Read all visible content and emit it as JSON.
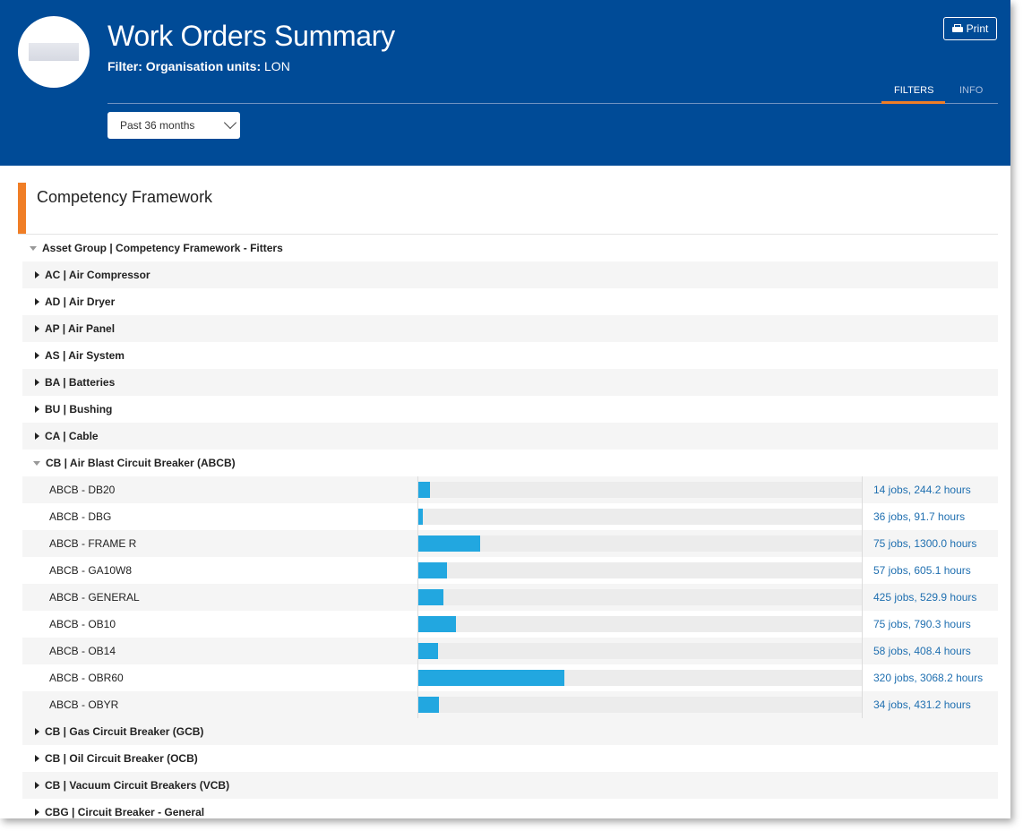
{
  "header": {
    "title": "Work Orders Summary",
    "filter_label": "Filter: Organisation units:",
    "filter_value": "LON",
    "print_label": "Print",
    "tabs": [
      {
        "label": "FILTERS",
        "active": true
      },
      {
        "label": "INFO",
        "active": false
      }
    ],
    "period_select": "Past 36 months"
  },
  "colors": {
    "header_bg": "#004b97",
    "accent": "#f07e26",
    "bar_fill": "#22a7e0",
    "value_link": "#1f6fb0"
  },
  "section": {
    "title": "Competency Framework",
    "group_label": "Asset Group | Competency Framework - Fitters"
  },
  "groups_before": [
    {
      "label": "AC | Air Compressor"
    },
    {
      "label": "AD | Air Dryer"
    },
    {
      "label": "AP | Air Panel"
    },
    {
      "label": "AS | Air System"
    },
    {
      "label": "BA | Batteries"
    },
    {
      "label": "BU | Bushing"
    },
    {
      "label": "CA | Cable"
    }
  ],
  "expanded_group": {
    "label": "CB | Air Blast Circuit Breaker (ABCB)",
    "items": [
      {
        "label": "ABCB - DB20",
        "jobs": 14,
        "hours": 244.2,
        "value_text": "14 jobs, 244.2 hours"
      },
      {
        "label": "ABCB - DBG",
        "jobs": 36,
        "hours": 91.7,
        "value_text": "36 jobs, 91.7 hours"
      },
      {
        "label": "ABCB - FRAME R",
        "jobs": 75,
        "hours": 1300.0,
        "value_text": "75 jobs, 1300.0 hours"
      },
      {
        "label": "ABCB - GA10W8",
        "jobs": 57,
        "hours": 605.1,
        "value_text": "57 jobs, 605.1 hours"
      },
      {
        "label": "ABCB - GENERAL",
        "jobs": 425,
        "hours": 529.9,
        "value_text": "425 jobs, 529.9 hours"
      },
      {
        "label": "ABCB - OB10",
        "jobs": 75,
        "hours": 790.3,
        "value_text": "75 jobs, 790.3 hours"
      },
      {
        "label": "ABCB - OB14",
        "jobs": 58,
        "hours": 408.4,
        "value_text": "58 jobs, 408.4 hours"
      },
      {
        "label": "ABCB - OBR60",
        "jobs": 320,
        "hours": 3068.2,
        "value_text": "320 jobs, 3068.2 hours"
      },
      {
        "label": "ABCB - OBYR",
        "jobs": 34,
        "hours": 431.2,
        "value_text": "34 jobs, 431.2 hours"
      }
    ],
    "bar_scale_max_hours": 9300
  },
  "groups_after": [
    {
      "label": "CB | Gas Circuit Breaker (GCB)"
    },
    {
      "label": "CB | Oil Circuit Breaker (OCB)"
    },
    {
      "label": "CB | Vacuum Circuit Breakers (VCB)"
    },
    {
      "label": "CBG | Circuit Breaker - General"
    }
  ]
}
